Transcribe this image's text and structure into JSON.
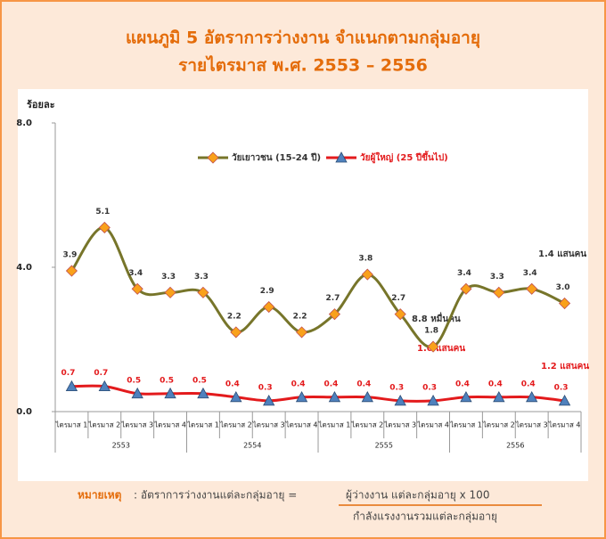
{
  "chart_data": {
    "type": "line",
    "title": "แผนภูมิ 5   อัตราการว่างงาน  จำแนกตามกลุ่มอายุ",
    "subtitle": "รายไตรมาส พ.ศ. 2553 – 2556",
    "y_label": "ร้อยละ",
    "categories": [
      "ไตรมาส 1",
      "ไตรมาส 2",
      "ไตรมาส 3",
      "ไตรมาส 4",
      "ไตรมาส 1",
      "ไตรมาส 2",
      "ไตรมาส 3",
      "ไตรมาส 4",
      "ไตรมาส 1",
      "ไตรมาส 2",
      "ไตรมาส 3",
      "ไตรมาส 4",
      "ไตรมาส 1",
      "ไตรมาส 2",
      "ไตรมาส 3",
      "ไตรมาส 4"
    ],
    "years": [
      "2553",
      "2554",
      "2555",
      "2556"
    ],
    "ylim": [
      0,
      8
    ],
    "yticks": [
      {
        "value": 0,
        "label": "0.0"
      },
      {
        "value": 4,
        "label": "4.0"
      },
      {
        "value": 8,
        "label": "8.0"
      }
    ],
    "series": [
      {
        "name": "วัยเยาวชน (15-24 ปี)",
        "color": "#77752a",
        "marker_color": "#f9a11b",
        "values": [
          3.9,
          5.1,
          3.4,
          3.3,
          3.3,
          2.2,
          2.9,
          2.2,
          2.7,
          3.8,
          2.7,
          1.8,
          3.4,
          3.3,
          3.4,
          3.0
        ],
        "value_labels": [
          "3.9",
          "5.1",
          "3.4",
          "3.3",
          "3.3",
          "2.2",
          "2.9",
          "2.2",
          "2.7",
          "3.8",
          "2.7",
          "1.8",
          "3.4",
          "3.3",
          "3.4",
          "3.0"
        ]
      },
      {
        "name": "วัยผู้ใหญ่ (25 ปีขึ้นไป)",
        "color": "#e31a1c",
        "marker_color": "#4f81bd",
        "values": [
          0.7,
          0.7,
          0.5,
          0.5,
          0.5,
          0.4,
          0.3,
          0.4,
          0.4,
          0.4,
          0.3,
          0.3,
          0.4,
          0.4,
          0.4,
          0.3
        ],
        "value_labels": [
          "0.7",
          "0.7",
          "0.5",
          "0.5",
          "0.5",
          "0.4",
          "0.3",
          "0.4",
          "0.4",
          "0.4",
          "0.3",
          "0.3",
          "0.4",
          "0.4",
          "0.4",
          "0.3"
        ]
      }
    ],
    "annotations": [
      "1.4 แสนคน",
      "8.8  หมื่นคน",
      "1.0 แสนคน",
      "1.2 แสนคน"
    ],
    "note": {
      "label": "หมายเหตุ",
      "text": ": อัตราการว่างงานแต่ละกลุ่มอายุ   =",
      "numerator": "ผู้ว่างงาน แต่ละกลุ่มอายุ     x    100",
      "denominator": "กำลังแรงงานรวมแต่ละกลุ่มอายุ"
    }
  }
}
